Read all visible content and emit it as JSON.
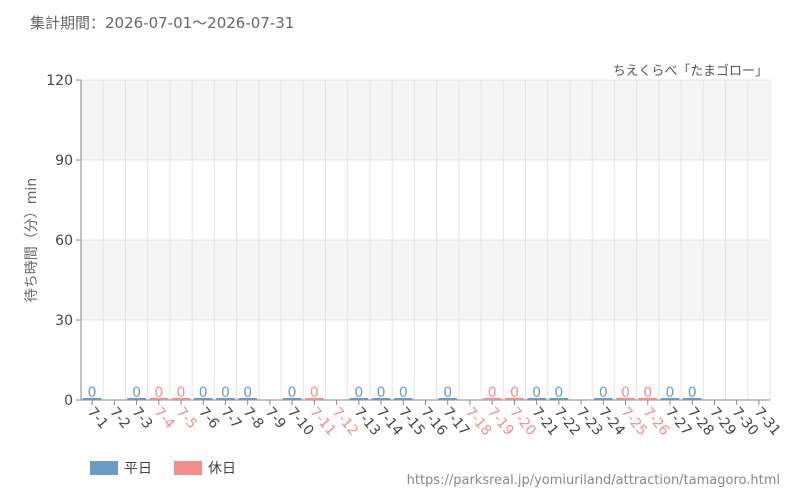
{
  "header": {
    "period_label": "集計期間：2026-07-01～2026-07-31",
    "attraction_title": "ちえくらべ「たまゴロー」"
  },
  "footer": {
    "source_url": "https://parksreal.jp/yomiuriland/attraction/tamagoro.html"
  },
  "colors": {
    "weekday": "#6a9bc3",
    "holiday": "#f28e8e",
    "grid": "#e4e4e4",
    "band": "#f5f5f5",
    "axis": "#888888"
  },
  "chart_data": {
    "type": "bar",
    "ylabel": "待ち時間（分）min",
    "ylim": [
      0,
      120
    ],
    "yticks": [
      0,
      30,
      60,
      90,
      120
    ],
    "legend_position": "bottom-left",
    "categories": [
      "7-1",
      "7-2",
      "7-3",
      "7-4",
      "7-5",
      "7-6",
      "7-7",
      "7-8",
      "7-9",
      "7-10",
      "7-11",
      "7-12",
      "7-13",
      "7-14",
      "7-15",
      "7-16",
      "7-17",
      "7-18",
      "7-19",
      "7-20",
      "7-21",
      "7-22",
      "7-23",
      "7-24",
      "7-25",
      "7-26",
      "7-27",
      "7-28",
      "7-29",
      "7-30",
      "7-31"
    ],
    "day_type": [
      "weekday",
      "weekday",
      "weekday",
      "holiday",
      "holiday",
      "weekday",
      "weekday",
      "weekday",
      "weekday",
      "weekday",
      "holiday",
      "holiday",
      "weekday",
      "weekday",
      "weekday",
      "weekday",
      "weekday",
      "holiday",
      "holiday",
      "holiday",
      "weekday",
      "weekday",
      "weekday",
      "weekday",
      "holiday",
      "holiday",
      "weekday",
      "weekday",
      "weekday",
      "weekday",
      "weekday"
    ],
    "values": [
      0,
      null,
      0,
      0,
      0,
      0,
      0,
      0,
      null,
      0,
      0,
      null,
      0,
      0,
      0,
      null,
      0,
      null,
      0,
      0,
      0,
      0,
      null,
      0,
      0,
      0,
      0,
      0,
      null,
      null,
      null
    ],
    "data_labels": [
      "0",
      "",
      "0",
      "0",
      "0",
      "0",
      "0",
      "0",
      "",
      "0",
      "0",
      "",
      "0",
      "0",
      "0",
      "",
      "0",
      "",
      "0",
      "0",
      "0",
      "0",
      "",
      "0",
      "0",
      "0",
      "0",
      "0",
      "",
      "",
      ""
    ],
    "series": [
      {
        "name": "平日",
        "key": "weekday"
      },
      {
        "name": "休日",
        "key": "holiday"
      }
    ]
  }
}
